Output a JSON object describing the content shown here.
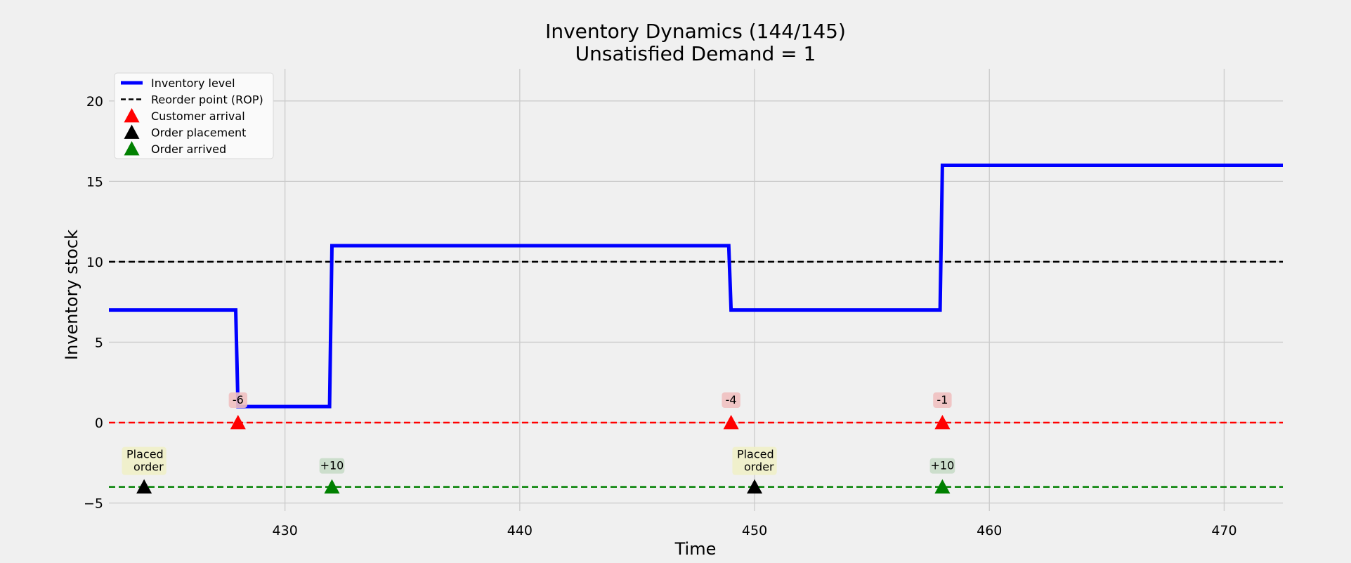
{
  "chart_data": {
    "type": "line",
    "title_line1": "Inventory Dynamics (144/145)",
    "title_line2": "Unsatisfied Demand = 1",
    "xlabel": "Time",
    "ylabel": "Inventory stock",
    "xlim": [
      422.5,
      472.5
    ],
    "ylim": [
      -5.5,
      22
    ],
    "xticks": [
      430,
      440,
      450,
      460,
      470
    ],
    "yticks": [
      -5,
      0,
      5,
      10,
      15,
      20
    ],
    "ytick_labels": [
      "−5",
      "0",
      "5",
      "10",
      "15",
      "20"
    ],
    "grid": true,
    "legend_position": "top-left",
    "legend": [
      {
        "label": "Inventory level",
        "kind": "line",
        "color": "#0000ff"
      },
      {
        "label": "Reorder point (ROP)",
        "kind": "dashed",
        "color": "#000000"
      },
      {
        "label": "Customer arrival",
        "kind": "triangle",
        "color": "#ff0000"
      },
      {
        "label": "Order placement",
        "kind": "triangle",
        "color": "#000000"
      },
      {
        "label": "Order arrived",
        "kind": "triangle",
        "color": "#008000"
      }
    ],
    "inventory_level": {
      "color": "#0000ff",
      "x": [
        422.5,
        427.9,
        428.0,
        431.9,
        432.0,
        448.9,
        449.0,
        457.9,
        458.0,
        472.5
      ],
      "y": [
        7,
        7,
        1,
        1,
        11,
        11,
        7,
        7,
        16,
        16
      ]
    },
    "reorder_point": {
      "value": 10,
      "color": "#000000"
    },
    "customer_baseline": {
      "value": 0,
      "color": "#ff0000"
    },
    "order_baseline": {
      "value": -4,
      "color": "#008000"
    },
    "customer_arrivals": [
      {
        "x": 428,
        "y": 0,
        "label": "-6"
      },
      {
        "x": 449,
        "y": 0,
        "label": "-4"
      },
      {
        "x": 458,
        "y": 0,
        "label": "-1"
      }
    ],
    "order_placements": [
      {
        "x": 424,
        "y": -4,
        "label": [
          "Placed",
          "order"
        ]
      },
      {
        "x": 450,
        "y": -4,
        "label": [
          "Placed",
          "order"
        ]
      }
    ],
    "orders_arrived": [
      {
        "x": 432,
        "y": -4,
        "label": "+10"
      },
      {
        "x": 458,
        "y": -4,
        "label": "+10"
      }
    ],
    "colors": {
      "customer_label_bg": "#f0c0c0",
      "placement_label_bg": "#f0f0c8",
      "arrived_label_bg": "#c8dcc8",
      "grid": "#cbcbcb"
    }
  }
}
